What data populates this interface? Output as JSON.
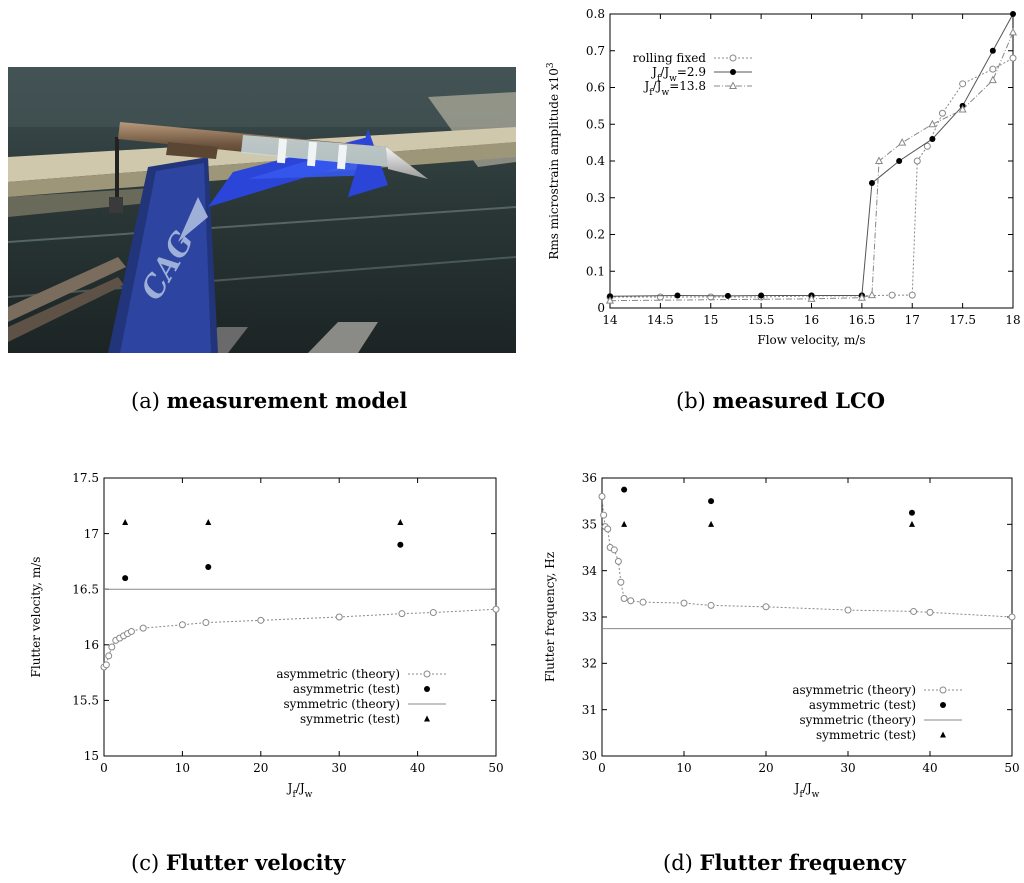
{
  "captions": {
    "a": {
      "tag": "(a)",
      "title": "measurement model"
    },
    "b": {
      "tag": "(b)",
      "title": "measured LCO"
    },
    "c": {
      "tag": "(c)",
      "title": "Flutter velocity"
    },
    "d": {
      "tag": "(d)",
      "title": "Flutter frequency"
    }
  },
  "photo": {
    "logo_text": "CAG",
    "description_icon": "wind-tunnel-model-photo"
  },
  "chart_data": [
    {
      "id": "b",
      "type": "line",
      "xlabel": "Flow velocity, m/s",
      "ylabel": "Rms  microstrain amplitude x10",
      "ylabel_sup": "3",
      "xlim": [
        14,
        18
      ],
      "ylim": [
        0,
        0.8
      ],
      "xticks": [
        "14",
        "14.5",
        "15",
        "15.5",
        "16",
        "16.5",
        "17",
        "17.5",
        "18"
      ],
      "yticks": [
        "0",
        "0.1",
        "0.2",
        "0.3",
        "0.4",
        "0.5",
        "0.6",
        "0.7",
        "0.8"
      ],
      "legend_position": "top-left",
      "series": [
        {
          "name": "rolling fixed",
          "style": "open-circle-dotted",
          "x": [
            14,
            14.5,
            15,
            15.5,
            16,
            16.5,
            16.8,
            17,
            17.05,
            17.15,
            17.3,
            17.5,
            17.8,
            18
          ],
          "y": [
            0.03,
            0.03,
            0.03,
            0.03,
            0.033,
            0.033,
            0.035,
            0.035,
            0.4,
            0.44,
            0.53,
            0.61,
            0.65,
            0.68
          ]
        },
        {
          "name": "J_f/J_w=2.9",
          "style": "filled-circle-solid",
          "x": [
            14,
            14.67,
            15.17,
            15.5,
            16,
            16.5,
            16.6,
            16.87,
            17.2,
            17.5,
            17.8,
            18
          ],
          "y": [
            0.032,
            0.034,
            0.033,
            0.034,
            0.034,
            0.034,
            0.34,
            0.4,
            0.46,
            0.55,
            0.7,
            0.8
          ]
        },
        {
          "name": "J_f/J_w=13.8",
          "style": "open-triangle-dashdot",
          "x": [
            14,
            16,
            16.5,
            16.6,
            16.67,
            16.9,
            17.2,
            17.5,
            17.8,
            18
          ],
          "y": [
            0.02,
            0.025,
            0.028,
            0.035,
            0.4,
            0.45,
            0.5,
            0.54,
            0.62,
            0.75
          ]
        }
      ]
    },
    {
      "id": "c",
      "type": "scatter",
      "xlabel": "J_f/J_w",
      "ylabel": "Flutter velocity, m/s",
      "xlim": [
        0,
        50
      ],
      "ylim": [
        15,
        17.5
      ],
      "xticks": [
        "0",
        "10",
        "20",
        "30",
        "40",
        "50"
      ],
      "yticks": [
        "15",
        "15.5",
        "16",
        "16.5",
        "17",
        "17.5"
      ],
      "legend_position": "bottom-right",
      "series": [
        {
          "name": "asymmetric (theory)",
          "style": "open-circle-dotted",
          "x": [
            0,
            0.3,
            0.6,
            1,
            1.5,
            2,
            2.5,
            3,
            3.5,
            5,
            10,
            13,
            20,
            30,
            38,
            42,
            50
          ],
          "y": [
            15.8,
            15.82,
            15.9,
            15.98,
            16.04,
            16.06,
            16.08,
            16.1,
            16.12,
            16.15,
            16.18,
            16.2,
            16.22,
            16.25,
            16.28,
            16.29,
            16.32
          ]
        },
        {
          "name": "asymmetric (test)",
          "style": "filled-circle",
          "x": [
            2.7,
            13.3,
            37.8
          ],
          "y": [
            16.6,
            16.7,
            16.9
          ]
        },
        {
          "name": "symmetric (theory)",
          "style": "solid-line",
          "x": [
            0,
            50
          ],
          "y": [
            16.5,
            16.5
          ]
        },
        {
          "name": "symmetric (test)",
          "style": "filled-triangle",
          "x": [
            2.7,
            13.3,
            37.8
          ],
          "y": [
            17.1,
            17.1,
            17.1
          ]
        }
      ]
    },
    {
      "id": "d",
      "type": "scatter",
      "xlabel": "J_f/J_w",
      "ylabel": "Flutter frequency, Hz",
      "xlim": [
        0,
        50
      ],
      "ylim": [
        30,
        36
      ],
      "xticks": [
        "0",
        "10",
        "20",
        "30",
        "40",
        "50"
      ],
      "yticks": [
        "30",
        "31",
        "32",
        "33",
        "34",
        "35",
        "36"
      ],
      "legend_position": "bottom-right",
      "series": [
        {
          "name": "asymmetric (theory)",
          "style": "open-circle-dotted",
          "x": [
            0,
            0.2,
            0.4,
            0.7,
            1,
            1.5,
            2,
            2.3,
            2.7,
            3.5,
            5,
            10,
            13.3,
            20,
            30,
            38,
            40,
            50
          ],
          "y": [
            35.6,
            35.2,
            34.95,
            34.9,
            34.5,
            34.45,
            34.2,
            33.75,
            33.4,
            33.35,
            33.32,
            33.3,
            33.25,
            33.22,
            33.15,
            33.12,
            33.1,
            33.0
          ]
        },
        {
          "name": "asymmetric (test)",
          "style": "filled-circle",
          "x": [
            2.7,
            13.3,
            37.8
          ],
          "y": [
            35.75,
            35.5,
            35.25
          ]
        },
        {
          "name": "symmetric (theory)",
          "style": "solid-line",
          "x": [
            0,
            50
          ],
          "y": [
            32.75,
            32.75
          ]
        },
        {
          "name": "symmetric (test)",
          "style": "filled-triangle",
          "x": [
            2.7,
            13.3,
            37.8
          ],
          "y": [
            35.0,
            35.0,
            35.0
          ]
        }
      ]
    }
  ]
}
